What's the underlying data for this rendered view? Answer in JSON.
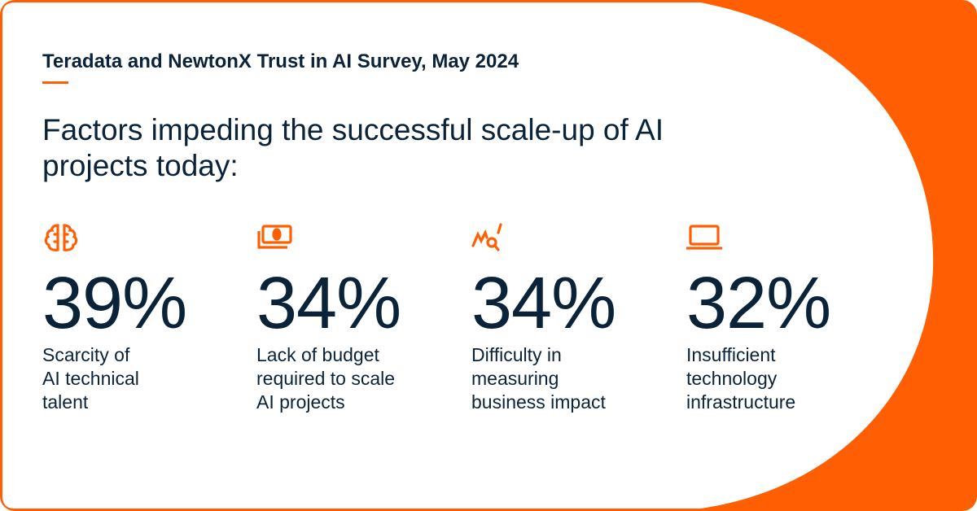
{
  "survey_label": "Teradata and NewtonX Trust in AI Survey, May 2024",
  "headline": "Factors impeding the successful scale-up of AI projects today:",
  "colors": {
    "accent": "#FF5F02",
    "text": "#0B2339",
    "background": "#FFFFFF"
  },
  "stats": [
    {
      "icon": "brain-icon",
      "value": "39%",
      "lines": [
        "Scarcity of",
        "AI technical",
        "talent"
      ]
    },
    {
      "icon": "money-icon",
      "value": "34%",
      "lines": [
        "Lack of budget",
        "required to scale",
        "AI projects"
      ]
    },
    {
      "icon": "chart-search-icon",
      "value": "34%",
      "lines": [
        "Difficulty in",
        "measuring",
        "business impact"
      ]
    },
    {
      "icon": "laptop-icon",
      "value": "32%",
      "lines": [
        "Insufficient",
        "technology",
        "infrastructure"
      ]
    }
  ]
}
